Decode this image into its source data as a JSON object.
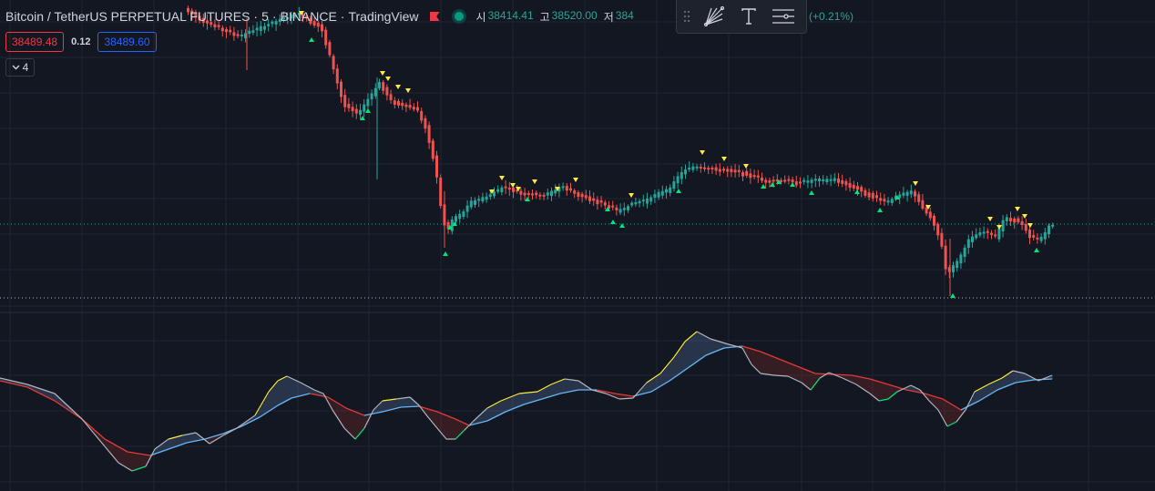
{
  "header": {
    "symbol": "Bitcoin / TetherUS PERPETUAL FUTURES",
    "interval": "5",
    "exchange": "BINANCE",
    "platform": "TradingView",
    "separator": "·",
    "ohlc": [
      {
        "key": "시",
        "value": "38414.41"
      },
      {
        "key": "고",
        "value": "38520.00"
      },
      {
        "key": "저",
        "value": "384"
      }
    ],
    "change": "1 (+0.21%)"
  },
  "trade": {
    "bid": "38489.48",
    "spread": "0.12",
    "ask": "38489.60"
  },
  "legend_toggle": "4",
  "toolbar": {
    "tools": [
      "drag-handle-icon",
      "fib-fan-icon",
      "text-tool-icon",
      "settings-lines-icon"
    ]
  },
  "colors": {
    "background": "#131722",
    "grid": "#1f2433",
    "up": "#26a69a",
    "down": "#ef5350",
    "buy_marker": "#00e676",
    "sell_marker": "#ffeb3b",
    "fast_line": "#b2b5be",
    "slow_line_up": "#64b5f6",
    "slow_line_down": "#e53935",
    "price_line": "#26a69a"
  }
}
